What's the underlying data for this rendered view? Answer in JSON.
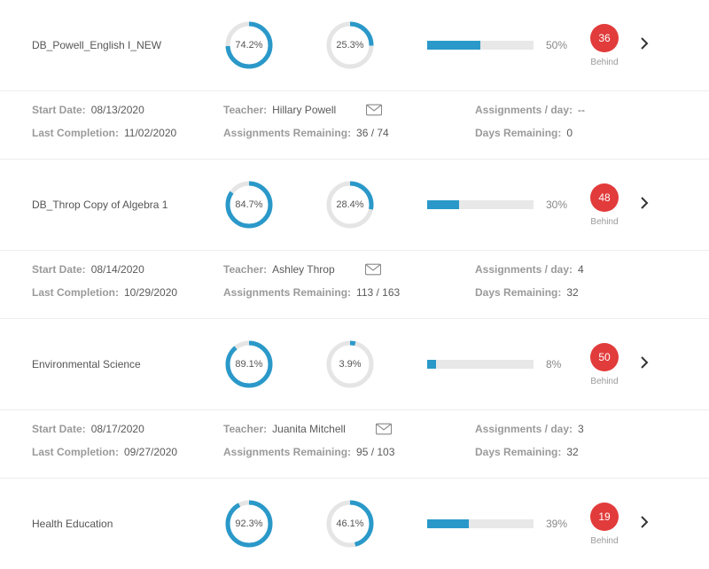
{
  "colors": {
    "ring_fg": "#2a99c9",
    "ring_bg": "#e5e5e5",
    "bar_fg": "#2a99c9",
    "bar_bg": "#e8e8e8",
    "badge_bg": "#e23b3b",
    "badge_text": "#ffffff",
    "text_muted": "#9a9a9a",
    "text_value": "#5a5a5a"
  },
  "ring_style": {
    "radius": 24,
    "stroke_width": 5,
    "size": 58
  },
  "labels": {
    "start_date": "Start Date:",
    "last_completion": "Last Completion:",
    "teacher": "Teacher:",
    "assignments_remaining": "Assignments Remaining:",
    "assignments_per_day": "Assignments / day:",
    "days_remaining": "Days Remaining:",
    "behind": "Behind"
  },
  "courses": [
    {
      "name": "DB_Powell_English I_NEW",
      "ring1": {
        "pct": 74.2,
        "label": "74.2%"
      },
      "ring2": {
        "pct": 25.3,
        "label": "25.3%"
      },
      "bar": {
        "pct": 50,
        "label": "50%"
      },
      "badge": "36",
      "details": {
        "start_date": "08/13/2020",
        "last_completion": "11/02/2020",
        "teacher": "Hillary Powell",
        "assignments_remaining": "36 / 74",
        "assignments_per_day": "--",
        "days_remaining": "0"
      }
    },
    {
      "name": "DB_Throp Copy of Algebra 1",
      "ring1": {
        "pct": 84.7,
        "label": "84.7%"
      },
      "ring2": {
        "pct": 28.4,
        "label": "28.4%"
      },
      "bar": {
        "pct": 30,
        "label": "30%"
      },
      "badge": "48",
      "details": {
        "start_date": "08/14/2020",
        "last_completion": "10/29/2020",
        "teacher": "Ashley Throp",
        "assignments_remaining": "113 / 163",
        "assignments_per_day": "4",
        "days_remaining": "32"
      }
    },
    {
      "name": "Environmental Science",
      "ring1": {
        "pct": 89.1,
        "label": "89.1%"
      },
      "ring2": {
        "pct": 3.9,
        "label": "3.9%"
      },
      "bar": {
        "pct": 8,
        "label": "8%"
      },
      "badge": "50",
      "details": {
        "start_date": "08/17/2020",
        "last_completion": "09/27/2020",
        "teacher": "Juanita Mitchell",
        "assignments_remaining": "95 / 103",
        "assignments_per_day": "3",
        "days_remaining": "32"
      }
    },
    {
      "name": "Health Education",
      "ring1": {
        "pct": 92.3,
        "label": "92.3%"
      },
      "ring2": {
        "pct": 46.1,
        "label": "46.1%"
      },
      "bar": {
        "pct": 39,
        "label": "39%"
      },
      "badge": "19",
      "details": null
    }
  ]
}
